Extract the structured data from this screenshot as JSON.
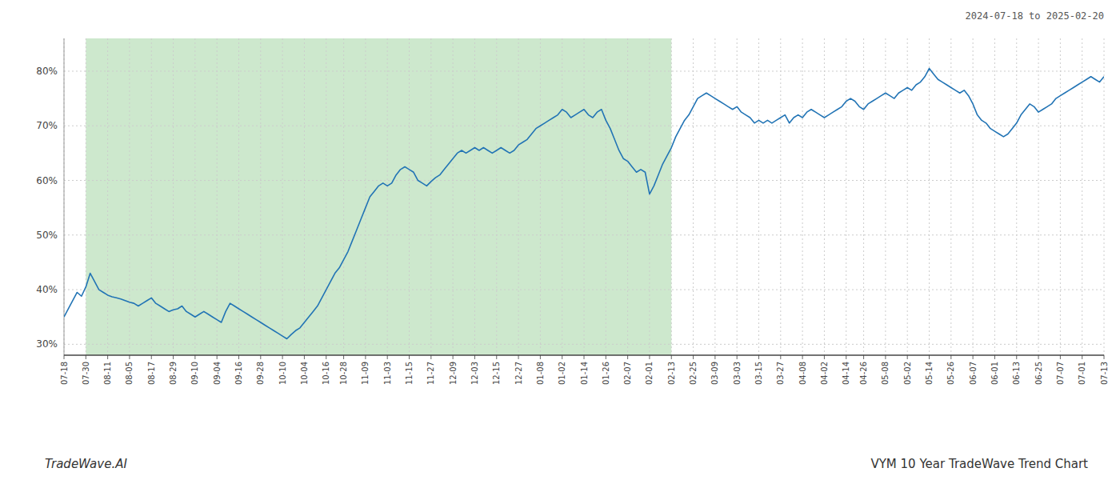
{
  "chart_data": {
    "type": "line",
    "title": "VYM 10 Year TradeWave Trend Chart",
    "subtitle": "2024-07-18 to 2025-02-20",
    "annotations": [
      "TradeWave.AI"
    ],
    "color": "#2274b5",
    "grid": true,
    "ylim": [
      28,
      86
    ],
    "yticks": [
      {
        "value": 30,
        "label": "30%"
      },
      {
        "value": 40,
        "label": "40%"
      },
      {
        "value": 50,
        "label": "50%"
      },
      {
        "value": 60,
        "label": "60%"
      },
      {
        "value": 70,
        "label": "70%"
      },
      {
        "value": 80,
        "label": "80%"
      }
    ],
    "shaded_region": {
      "from": "07-30",
      "to": "02-13",
      "color": "#cde8cd"
    },
    "categories": [
      "07-18",
      null,
      null,
      null,
      null,
      "07-30",
      null,
      null,
      null,
      null,
      "08-11",
      null,
      null,
      null,
      null,
      "08-05",
      null,
      null,
      null,
      null,
      "08-17",
      null,
      null,
      null,
      null,
      "08-29",
      null,
      null,
      null,
      null,
      "09-10",
      null,
      null,
      null,
      null,
      "09-04",
      null,
      null,
      null,
      null,
      "09-16",
      null,
      null,
      null,
      null,
      "09-28",
      null,
      null,
      null,
      null,
      "10-10",
      null,
      null,
      null,
      null,
      "10-04",
      null,
      null,
      null,
      null,
      "10-16",
      null,
      null,
      null,
      "10-28",
      null,
      null,
      null,
      null,
      "11-09",
      null,
      null,
      null,
      null,
      "11-03",
      null,
      null,
      null,
      null,
      "11-15",
      null,
      null,
      null,
      null,
      "11-27",
      null,
      null,
      null,
      null,
      "12-09",
      null,
      null,
      null,
      null,
      "12-03",
      null,
      null,
      null,
      null,
      "12-15",
      null,
      null,
      null,
      null,
      "12-27",
      null,
      null,
      null,
      null,
      "01-08",
      null,
      null,
      null,
      null,
      "01-02",
      null,
      null,
      null,
      null,
      "01-14",
      null,
      null,
      null,
      null,
      "01-26",
      null,
      null,
      null,
      null,
      "02-07",
      null,
      null,
      null,
      null,
      "02-01",
      null,
      null,
      null,
      null,
      "02-13",
      null,
      null,
      null,
      null,
      "02-25",
      null,
      null,
      null,
      null,
      "03-09",
      null,
      null,
      null,
      null,
      "03-03",
      null,
      null,
      null,
      null,
      "03-15",
      null,
      null,
      null,
      null,
      "03-27",
      null,
      null,
      null,
      null,
      "04-08",
      null,
      null,
      null,
      null,
      "04-02",
      null,
      null,
      null,
      null,
      "04-14",
      null,
      null,
      null,
      "04-26",
      null,
      null,
      null,
      null,
      "05-08",
      null,
      null,
      null,
      null,
      "05-02",
      null,
      null,
      null,
      null,
      "05-14",
      null,
      null,
      null,
      null,
      "05-26",
      null,
      null,
      null,
      null,
      "06-07",
      null,
      null,
      null,
      null,
      "06-01",
      null,
      null,
      null,
      null,
      "06-13",
      null,
      null,
      null,
      null,
      "06-25",
      null,
      null,
      null,
      null,
      "07-07",
      null,
      null,
      null,
      null,
      "07-01",
      null,
      null,
      null,
      null,
      "07-13"
    ],
    "values": [
      35.0,
      36.5,
      38.0,
      39.5,
      38.8,
      40.5,
      43.0,
      41.5,
      40.0,
      39.5,
      39.0,
      38.7,
      38.5,
      38.3,
      38.0,
      37.7,
      37.5,
      37.0,
      37.5,
      38.0,
      38.5,
      37.5,
      37.0,
      36.5,
      36.0,
      36.3,
      36.5,
      37.0,
      36.0,
      35.5,
      35.0,
      35.5,
      36.0,
      35.5,
      35.0,
      34.5,
      34.0,
      36.0,
      37.5,
      37.0,
      36.5,
      36.0,
      35.5,
      35.0,
      34.5,
      34.0,
      33.5,
      33.0,
      32.5,
      32.0,
      31.5,
      31.0,
      31.8,
      32.5,
      33.0,
      34.0,
      35.0,
      36.0,
      37.0,
      38.5,
      40.0,
      41.5,
      43.0,
      44.0,
      45.5,
      47.0,
      49.0,
      51.0,
      53.0,
      55.0,
      57.0,
      58.0,
      59.0,
      59.5,
      59.0,
      59.5,
      61.0,
      62.0,
      62.5,
      62.0,
      61.5,
      60.0,
      59.5,
      59.0,
      59.8,
      60.5,
      61.0,
      62.0,
      63.0,
      64.0,
      65.0,
      65.5,
      65.0,
      65.5,
      66.0,
      65.5,
      66.0,
      65.5,
      65.0,
      65.5,
      66.0,
      65.5,
      65.0,
      65.5,
      66.5,
      67.0,
      67.5,
      68.5,
      69.5,
      70.0,
      70.5,
      71.0,
      71.5,
      72.0,
      73.0,
      72.5,
      71.5,
      72.0,
      72.5,
      73.0,
      72.0,
      71.5,
      72.5,
      73.0,
      71.0,
      69.5,
      67.5,
      65.5,
      64.0,
      63.5,
      62.5,
      61.5,
      62.0,
      61.5,
      57.5,
      59.0,
      61.0,
      63.0,
      64.5,
      66.0,
      68.0,
      69.5,
      71.0,
      72.0,
      73.5,
      75.0,
      75.5,
      76.0,
      75.5,
      75.0,
      74.5,
      74.0,
      73.5,
      73.0,
      73.5,
      72.5,
      72.0,
      71.5,
      70.5,
      71.0,
      70.5,
      71.0,
      70.5,
      71.0,
      71.5,
      72.0,
      70.5,
      71.5,
      72.0,
      71.5,
      72.5,
      73.0,
      72.5,
      72.0,
      71.5,
      72.0,
      72.5,
      73.0,
      73.5,
      74.5,
      75.0,
      74.5,
      73.5,
      73.0,
      74.0,
      74.5,
      75.0,
      75.5,
      76.0,
      75.5,
      75.0,
      76.0,
      76.5,
      77.0,
      76.5,
      77.5,
      78.0,
      79.0,
      80.5,
      79.5,
      78.5,
      78.0,
      77.5,
      77.0,
      76.5,
      76.0,
      76.5,
      75.5,
      74.0,
      72.0,
      71.0,
      70.5,
      69.5,
      69.0,
      68.5,
      68.0,
      68.5,
      69.5,
      70.5,
      72.0,
      73.0,
      74.0,
      73.5,
      72.5,
      73.0,
      73.5,
      74.0,
      75.0,
      75.5,
      76.0,
      76.5,
      77.0,
      77.5,
      78.0,
      78.5,
      79.0,
      78.5,
      78.0,
      79.0
    ]
  }
}
